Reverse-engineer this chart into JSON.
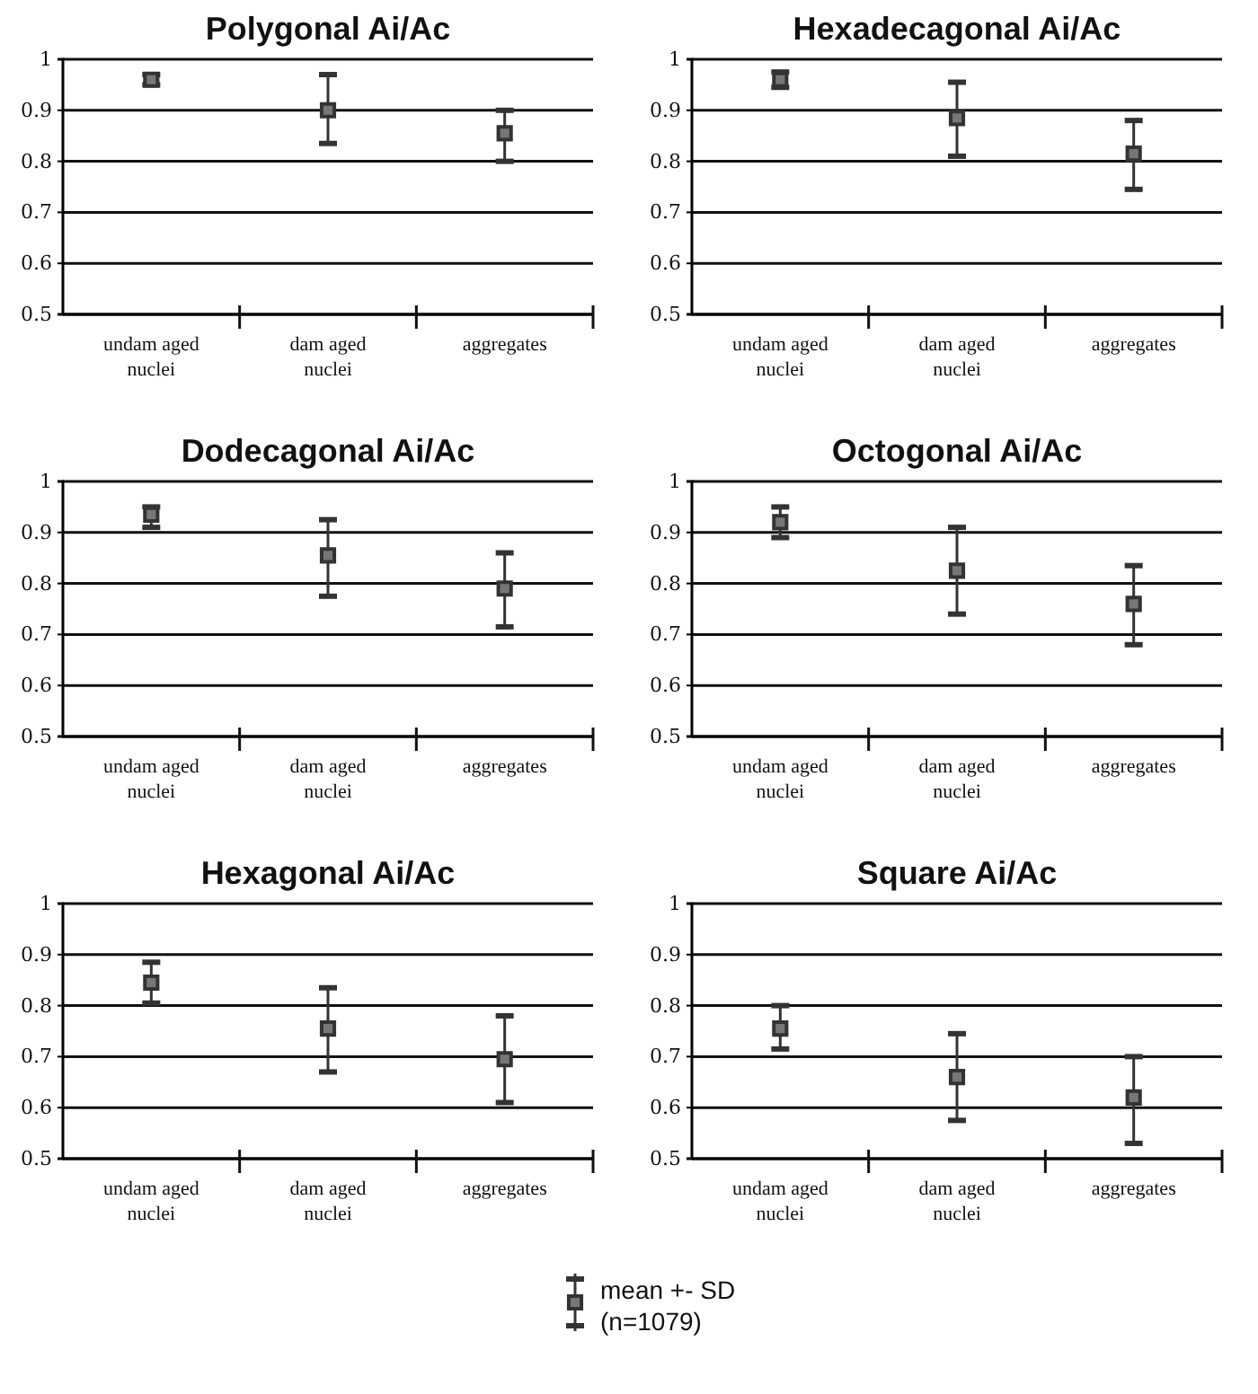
{
  "chart_data": [
    {
      "type": "scatter",
      "title": "Polygonal Ai/Ac",
      "categories": [
        "undam aged nuclei",
        "dam aged nuclei",
        "aggregates"
      ],
      "series": [
        {
          "color": "#333333",
          "values": [
            0.96,
            0.9,
            0.855
          ],
          "errors": [
            [
              0.95,
              0.97
            ],
            [
              0.835,
              0.97
            ],
            [
              0.8,
              0.9
            ]
          ]
        }
      ],
      "ylim": [
        0.5,
        1
      ],
      "yticks": [
        0.5,
        0.6,
        0.7,
        0.8,
        0.9,
        1
      ],
      "grid": "y",
      "marker": "square"
    },
    {
      "type": "scatter",
      "title": "Hexadecagonal Ai/Ac",
      "categories": [
        "undam aged nuclei",
        "dam aged nuclei",
        "aggregates"
      ],
      "series": [
        {
          "color": "#333333",
          "values": [
            0.96,
            0.885,
            0.815
          ],
          "errors": [
            [
              0.945,
              0.975
            ],
            [
              0.81,
              0.955
            ],
            [
              0.745,
              0.88
            ]
          ]
        }
      ],
      "ylim": [
        0.5,
        1
      ],
      "yticks": [
        0.5,
        0.6,
        0.7,
        0.8,
        0.9,
        1
      ],
      "grid": "y",
      "marker": "square"
    },
    {
      "type": "scatter",
      "title": "Dodecagonal Ai/Ac",
      "categories": [
        "undam aged nuclei",
        "dam aged nuclei",
        "aggregates"
      ],
      "series": [
        {
          "color": "#333333",
          "values": [
            0.935,
            0.855,
            0.79
          ],
          "errors": [
            [
              0.91,
              0.95
            ],
            [
              0.775,
              0.925
            ],
            [
              0.715,
              0.86
            ]
          ]
        }
      ],
      "ylim": [
        0.5,
        1
      ],
      "yticks": [
        0.5,
        0.6,
        0.7,
        0.8,
        0.9,
        1
      ],
      "grid": "y",
      "marker": "square"
    },
    {
      "type": "scatter",
      "title": "Octogonal Ai/Ac",
      "categories": [
        "undam aged nuclei",
        "dam aged nuclei",
        "aggregates"
      ],
      "series": [
        {
          "color": "#333333",
          "values": [
            0.92,
            0.825,
            0.76
          ],
          "errors": [
            [
              0.89,
              0.95
            ],
            [
              0.74,
              0.91
            ],
            [
              0.68,
              0.835
            ]
          ]
        }
      ],
      "ylim": [
        0.5,
        1
      ],
      "yticks": [
        0.5,
        0.6,
        0.7,
        0.8,
        0.9,
        1
      ],
      "grid": "y",
      "marker": "square"
    },
    {
      "type": "scatter",
      "title": "Hexagonal Ai/Ac",
      "categories": [
        "undam aged nuclei",
        "dam aged nuclei",
        "aggregates"
      ],
      "series": [
        {
          "color": "#333333",
          "values": [
            0.845,
            0.755,
            0.695
          ],
          "errors": [
            [
              0.805,
              0.885
            ],
            [
              0.67,
              0.835
            ],
            [
              0.61,
              0.78
            ]
          ]
        }
      ],
      "ylim": [
        0.5,
        1
      ],
      "yticks": [
        0.5,
        0.6,
        0.7,
        0.8,
        0.9,
        1
      ],
      "grid": "y",
      "marker": "square"
    },
    {
      "type": "scatter",
      "title": "Square Ai/Ac",
      "categories": [
        "undam aged nuclei",
        "dam aged nuclei",
        "aggregates"
      ],
      "series": [
        {
          "name": "mean +- SD (n=1079)",
          "color": "#333333",
          "values": [
            0.755,
            0.66,
            0.62
          ],
          "errors": [
            [
              0.715,
              0.8
            ],
            [
              0.575,
              0.745
            ],
            [
              0.53,
              0.7
            ]
          ]
        }
      ],
      "ylim": [
        0.5,
        1
      ],
      "yticks": [
        0.5,
        0.6,
        0.7,
        0.8,
        0.9,
        1
      ],
      "grid": "y",
      "marker": "square",
      "legend": "bottom"
    }
  ]
}
